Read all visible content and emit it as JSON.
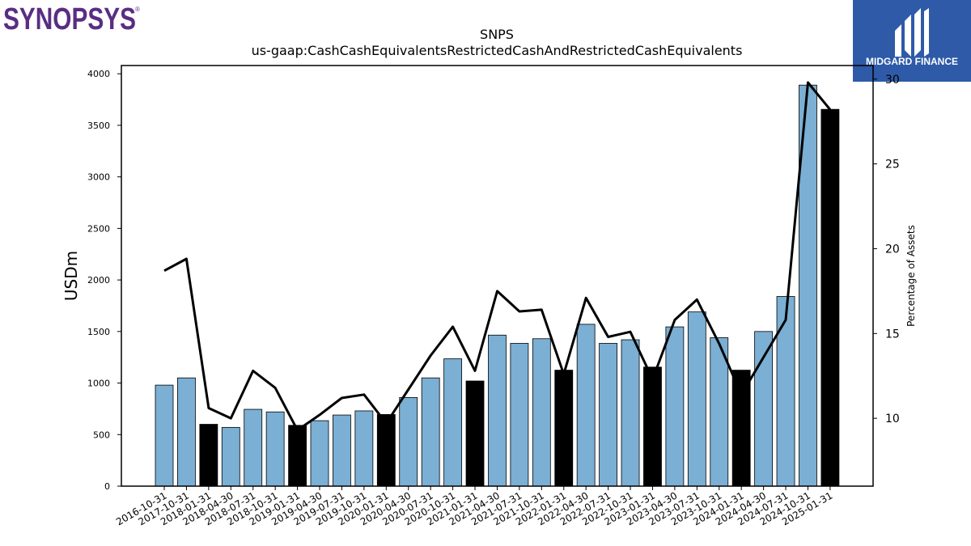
{
  "logos": {
    "left": {
      "text": "SYNOPSYS",
      "mark": "®",
      "color": "#5a2d82"
    },
    "right": {
      "text": "MIDGARD FINANCE",
      "icon": "midgard-logo-icon",
      "background": "#2e5aa8"
    }
  },
  "chart_data": {
    "type": "bar",
    "title": "SNPS",
    "subtitle": "us-gaap:CashCashEquivalentsRestrictedCashAndRestrictedCashEquivalents",
    "ylabel": "USDm",
    "y2label": "Percentage of Assets",
    "ylim": [
      0,
      4080
    ],
    "y2lim": [
      6,
      30.8
    ],
    "yticks": [
      0,
      500,
      1000,
      1500,
      2000,
      2500,
      3000,
      3500,
      4000
    ],
    "y2ticks": [
      10,
      15,
      20,
      25,
      30
    ],
    "grid": false,
    "colors": {
      "bar": "#7bafd4",
      "highlight": "#000000",
      "line": "#000000"
    },
    "categories": [
      "2016-10-31",
      "2017-10-31",
      "2018-01-31",
      "2018-04-30",
      "2018-07-31",
      "2018-10-31",
      "2019-01-31",
      "2019-04-30",
      "2019-07-31",
      "2019-10-31",
      "2020-01-31",
      "2020-04-30",
      "2020-07-31",
      "2020-10-31",
      "2021-01-31",
      "2021-04-30",
      "2021-07-31",
      "2021-10-31",
      "2022-01-31",
      "2022-04-30",
      "2022-07-31",
      "2022-10-31",
      "2023-01-31",
      "2023-04-30",
      "2023-07-31",
      "2023-10-31",
      "2024-01-31",
      "2024-04-30",
      "2024-07-31",
      "2024-10-31",
      "2025-01-31"
    ],
    "series": [
      {
        "type": "bar",
        "values": [
          980,
          1050,
          600,
          570,
          745,
          720,
          590,
          635,
          690,
          730,
          695,
          860,
          1050,
          1235,
          1020,
          1465,
          1385,
          1430,
          1125,
          1570,
          1385,
          1420,
          1155,
          1545,
          1690,
          1440,
          1125,
          1500,
          1840,
          3890,
          3655
        ],
        "highlight": [
          false,
          false,
          true,
          false,
          false,
          false,
          true,
          false,
          false,
          false,
          true,
          false,
          false,
          false,
          true,
          false,
          false,
          false,
          true,
          false,
          false,
          false,
          true,
          false,
          false,
          false,
          true,
          false,
          false,
          false,
          true
        ]
      },
      {
        "type": "line",
        "axis": "right",
        "values": [
          18.7,
          19.4,
          10.6,
          10.0,
          12.8,
          11.8,
          9.3,
          10.2,
          11.2,
          11.4,
          9.7,
          11.7,
          13.7,
          15.4,
          12.8,
          17.5,
          16.3,
          16.4,
          12.6,
          17.1,
          14.8,
          15.1,
          12.3,
          15.8,
          17.0,
          14.4,
          11.4,
          13.6,
          15.8,
          29.8,
          28.2
        ]
      }
    ]
  }
}
